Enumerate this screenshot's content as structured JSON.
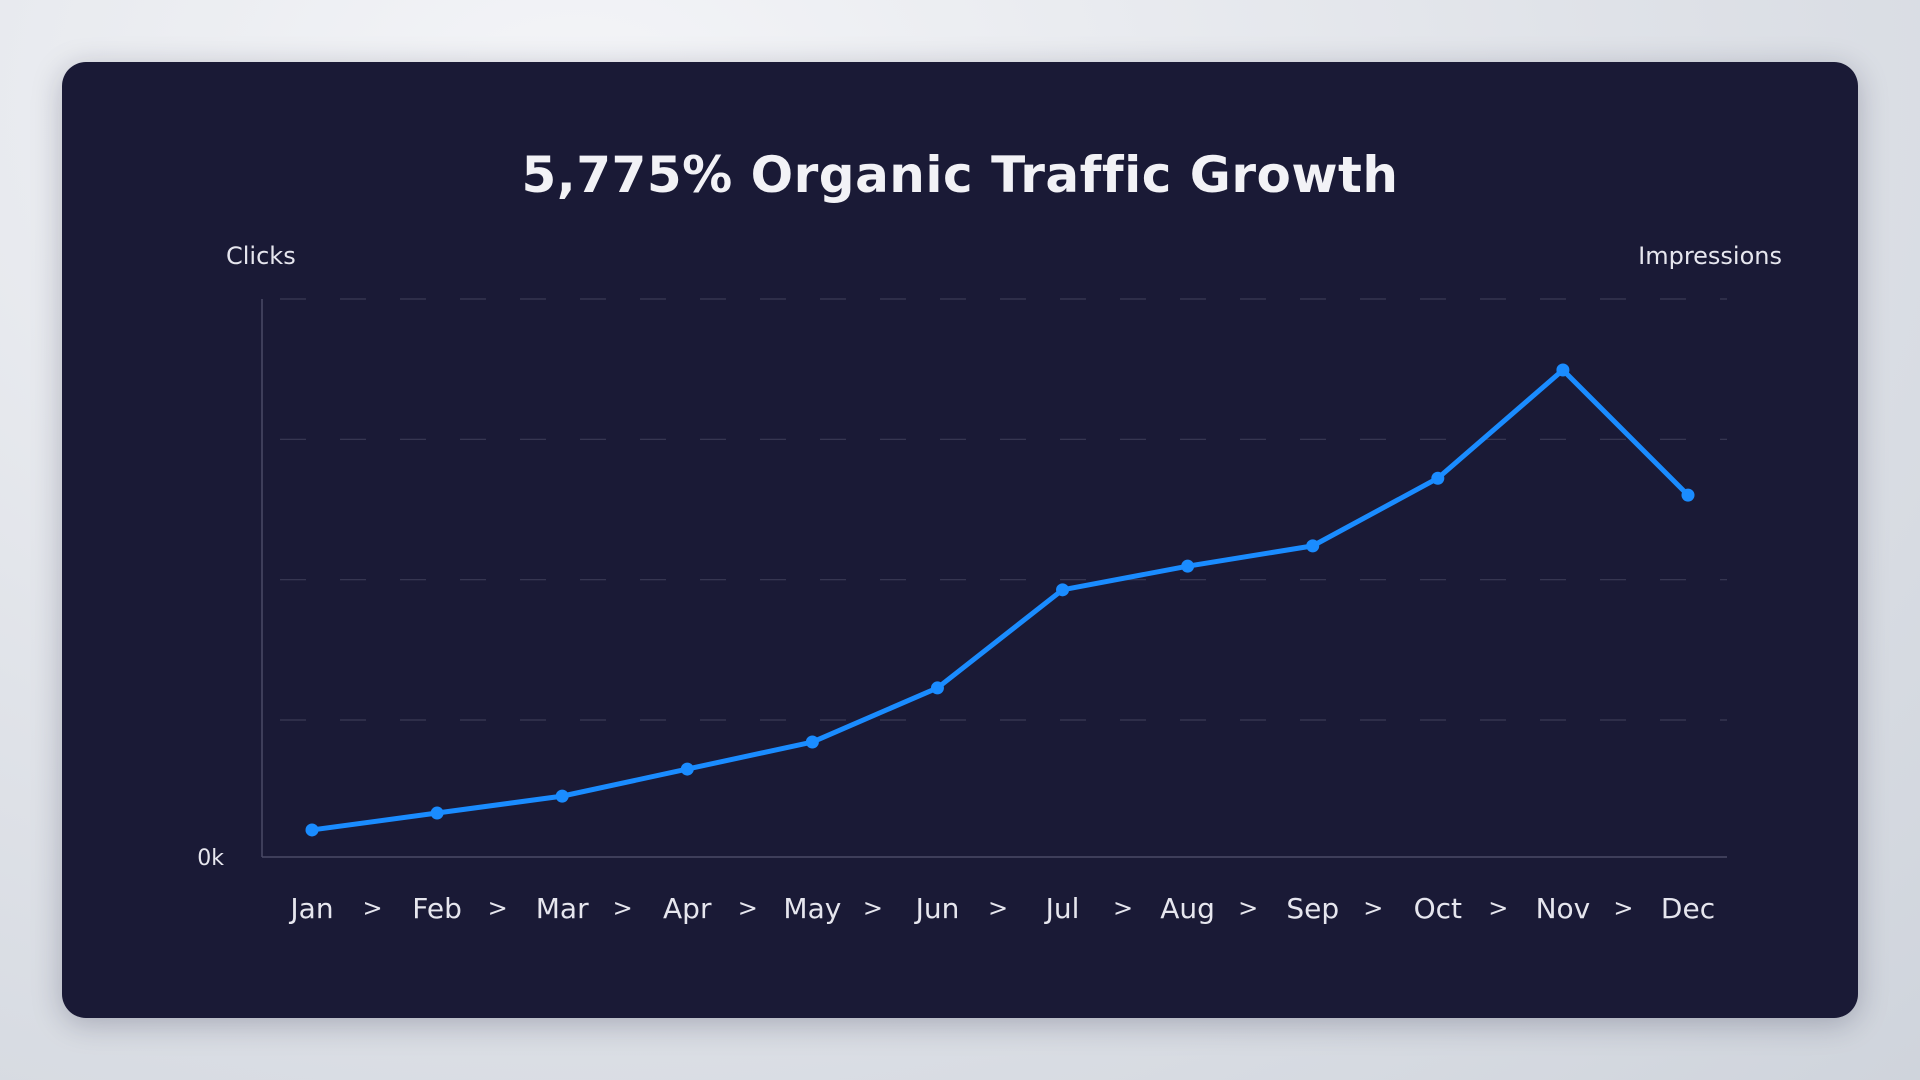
{
  "chart_data": {
    "type": "line",
    "title": "5,775% Organic Traffic Growth",
    "ylabel_left": "Clicks",
    "ylabel_right": "Impressions",
    "y_tick_labels": [
      "0k"
    ],
    "categories": [
      "Jan",
      "Feb",
      "Mar",
      "Apr",
      "May",
      "Jun",
      "Jul",
      "Aug",
      "Sep",
      "Oct",
      "Nov",
      "Dec"
    ],
    "separator": ">",
    "series": [
      {
        "values": [
          8,
          13,
          18,
          26,
          34,
          50,
          79,
          86,
          92,
          112,
          144,
          107
        ]
      }
    ],
    "ylim": [
      0,
      165
    ],
    "grid": true,
    "grid_style": "dashed",
    "line_color": "#1a8cff",
    "marker_color": "#1a8cff"
  },
  "colors": {
    "background_card": "#1a1a36",
    "text": "#e6e6ee",
    "grid": "#3a3a55",
    "axis": "#4a4a66"
  }
}
